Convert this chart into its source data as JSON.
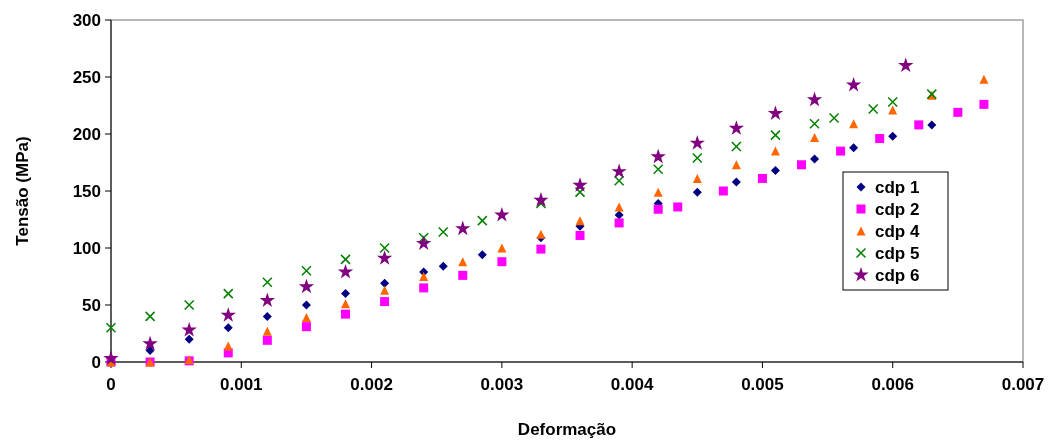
{
  "chart_data": {
    "type": "scatter",
    "xlabel": "Deformação",
    "ylabel": "Tensão (MPa)",
    "xlim": [
      0,
      0.007
    ],
    "xticks": [
      0,
      0.001,
      0.002,
      0.003,
      0.004,
      0.005,
      0.006,
      0.007
    ],
    "ylim": [
      0,
      300
    ],
    "yticks": [
      0,
      50,
      100,
      150,
      200,
      250,
      300
    ],
    "grid": false,
    "legend": "right",
    "series": [
      {
        "name": "cdp 1",
        "color": "#000080",
        "marker": "diamond",
        "x": [
          0.0003,
          0.0006,
          0.0009,
          0.0012,
          0.0015,
          0.0018,
          0.0021,
          0.0024,
          0.00255,
          0.00285,
          0.0033,
          0.0036,
          0.0039,
          0.0042,
          0.0045,
          0.0048,
          0.0051,
          0.0054,
          0.0057,
          0.006,
          0.0063
        ],
        "values": [
          10,
          20,
          30,
          40,
          50,
          60,
          69,
          79,
          84,
          94,
          109,
          119,
          129,
          139,
          149,
          158,
          168,
          178,
          188,
          198,
          208
        ]
      },
      {
        "name": "cdp 2",
        "color": "#ff00ff",
        "marker": "square",
        "x": [
          0,
          0.0003,
          0.0006,
          0.0009,
          0.0012,
          0.0015,
          0.0018,
          0.0021,
          0.0024,
          0.0027,
          0.003,
          0.0033,
          0.0036,
          0.0039,
          0.0042,
          0.00435,
          0.0047,
          0.005,
          0.0053,
          0.0056,
          0.0059,
          0.0062,
          0.0065,
          0.0067
        ],
        "values": [
          0,
          0,
          1,
          8,
          19,
          31,
          42,
          53,
          65,
          76,
          88,
          99,
          111,
          122,
          134,
          136,
          150,
          161,
          173,
          185,
          196,
          208,
          219,
          226
        ]
      },
      {
        "name": "cdp 4",
        "color": "#ff6600",
        "marker": "triangle",
        "x": [
          0,
          0.0003,
          0.0006,
          0.0009,
          0.0012,
          0.0015,
          0.0018,
          0.0021,
          0.0024,
          0.0027,
          0.003,
          0.0033,
          0.0036,
          0.0039,
          0.0042,
          0.0045,
          0.0048,
          0.0051,
          0.0054,
          0.0057,
          0.006,
          0.0063,
          0.0067
        ],
        "values": [
          0,
          0,
          2,
          14,
          27,
          39,
          51,
          63,
          75,
          88,
          100,
          112,
          124,
          136,
          149,
          161,
          173,
          185,
          197,
          209,
          221,
          234,
          248
        ]
      },
      {
        "name": "cdp 5",
        "color": "#008000",
        "marker": "cross",
        "x": [
          0,
          0.0003,
          0.0006,
          0.0009,
          0.0012,
          0.0015,
          0.0018,
          0.0021,
          0.0024,
          0.00255,
          0.00285,
          0.0033,
          0.0036,
          0.0039,
          0.0042,
          0.0045,
          0.0048,
          0.0051,
          0.0054,
          0.00555,
          0.00585,
          0.006,
          0.0063
        ],
        "values": [
          30,
          40,
          50,
          60,
          70,
          80,
          90,
          100,
          109,
          114,
          124,
          139,
          149,
          159,
          169,
          179,
          189,
          199,
          209,
          214,
          222,
          228,
          235
        ]
      },
      {
        "name": "cdp 6",
        "color": "#800080",
        "marker": "star",
        "x": [
          0,
          0.0003,
          0.0006,
          0.0009,
          0.0012,
          0.0015,
          0.0018,
          0.0021,
          0.0024,
          0.0027,
          0.003,
          0.0033,
          0.0036,
          0.0039,
          0.0042,
          0.0045,
          0.0048,
          0.0051,
          0.0054,
          0.0057,
          0.0061
        ],
        "values": [
          3,
          16,
          28,
          41,
          54,
          66,
          79,
          91,
          104,
          117,
          129,
          142,
          155,
          167,
          180,
          192,
          205,
          218,
          230,
          243,
          260
        ]
      }
    ]
  }
}
